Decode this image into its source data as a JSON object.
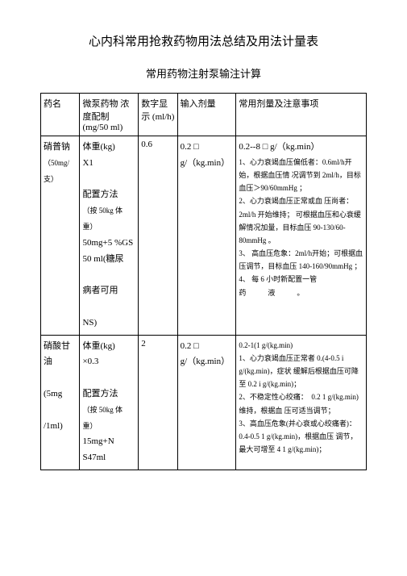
{
  "title": "心内科常用抢救药物用法总结及用法计量表",
  "subtitle": "常用药物注射泵输注计算",
  "headers": {
    "col1": "药名",
    "col2": "微泵药物 浓度配制 (mg/50 ml)",
    "col3": "数字显 示 (ml/h)",
    "col4": "输入剂量",
    "col5": "常用剂量及注意事项"
  },
  "rows": [
    {
      "name_main": "硝普钠",
      "name_sub": "（50mg/支）",
      "config_line1": "体重(kg)",
      "config_line2": "X1",
      "config_method_title": "配置方法",
      "config_method_sub": "（按 50kg 体重）",
      "config_line3": "50mg+5 %GS",
      "config_line4": "50 ml(糖尿",
      "config_line5": "病者可用",
      "config_line6": "NS)",
      "display": "0.6",
      "dose_line1": "0.2 □",
      "dose_line2": "g/（kg.min）",
      "notes_main": "0.2--8 □ g/（kg.min）",
      "notes_1": "1、心力衰竭血压偏低者：0.6ml/h开始，根据血压情 况调节到 2ml/h，目标血压＞90/60mmHg ；",
      "notes_2": "2、心力衰竭血压正常或血 压尚者：2ml/h 开始维持； 可根据血压和心衰缓解情况加量，目标血压 90-130/60-80mmHg 。",
      "notes_3": "3、 高血压危象：2ml/h开始；可根据血压调节，目标血压 140-160/90mmHg ；",
      "notes_4": "4、 每 6 小时新配置一管",
      "notes_5": "药　　　液　　　。"
    },
    {
      "name_main": "硝酸甘油",
      "name_dose1": "(5mg",
      "name_dose2": "/1ml)",
      "config_line1": "体重(kg)",
      "config_line2": "×0.3",
      "config_method_title": "配置方法",
      "config_method_sub": "（按 50kg 体重）",
      "config_line3": "15mg+N",
      "config_line4": "S47ml",
      "display": "2",
      "dose_line1": "0.2 □",
      "dose_line2": "g/（kg.min）",
      "notes_main": "0.2-1(1 g/(kg.min)",
      "notes_1": "1、心力衰竭血压正常者 0.(4-0.5 i g/(kg.min)，症状 缓解后根据血压可降至 0.2 i g/(kg.min)；",
      "notes_2": "2、不稳定性心绞痛：　0.2 1 g/(kg.min)维持，根据血 压可适当调节；",
      "notes_3": "3、高血压危象(并心衰或心绞痛者)：0.4-0.5 1 g/(kg.min)，根据血压 调节，最大可增至 4 1 g/(kg.min)；"
    }
  ]
}
